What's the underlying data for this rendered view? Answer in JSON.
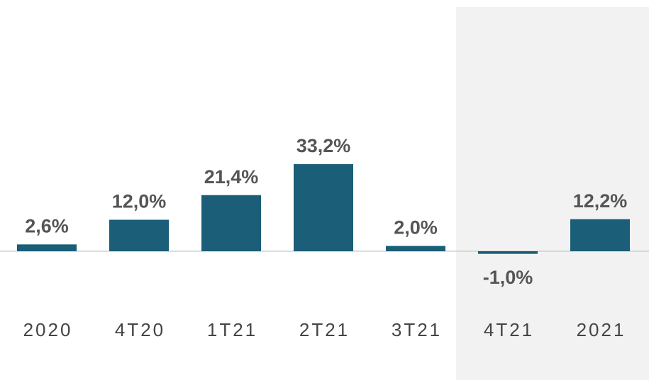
{
  "chart_data": {
    "type": "bar",
    "categories": [
      "2020",
      "4T20",
      "1T21",
      "2T21",
      "3T21",
      "4T21",
      "2021"
    ],
    "values": [
      2.6,
      12.0,
      21.4,
      33.2,
      2.0,
      -1.0,
      12.2
    ],
    "value_labels": [
      "2,6%",
      "12,0%",
      "21,4%",
      "33,2%",
      "2,0%",
      "-1,0%",
      "12,2%"
    ],
    "color": "#1b5e78"
  }
}
